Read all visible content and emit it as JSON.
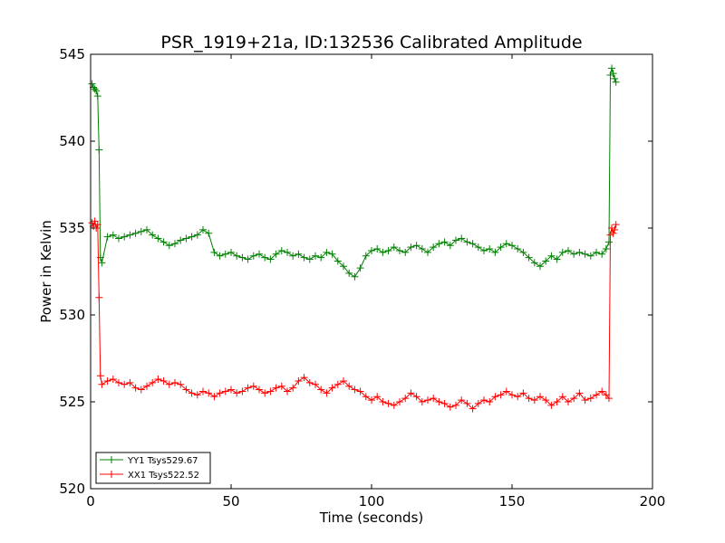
{
  "chart_data": {
    "type": "line",
    "title": "PSR_1919+21a, ID:132536 Calibrated Amplitude",
    "xlabel": "Time (seconds)",
    "ylabel": "Power in Kelvin",
    "xlim": [
      0,
      200
    ],
    "ylim": [
      520,
      545
    ],
    "xticks": [
      0,
      50,
      100,
      150,
      200
    ],
    "yticks": [
      520,
      525,
      530,
      535,
      540,
      545
    ],
    "grid": false,
    "legend_position": "lower-left",
    "series": [
      {
        "name": "YY1 Tsys529.67",
        "color": "#008000",
        "marker": "+",
        "points": [
          [
            0.5,
            543.3
          ],
          [
            1.0,
            543.1
          ],
          [
            1.5,
            543.0
          ],
          [
            2.0,
            542.9
          ],
          [
            2.5,
            542.6
          ],
          [
            3.0,
            539.5
          ],
          [
            3.5,
            533.3
          ],
          [
            4.0,
            533.0
          ],
          [
            6,
            534.5
          ],
          [
            8,
            534.6
          ],
          [
            10,
            534.4
          ],
          [
            12,
            534.5
          ],
          [
            14,
            534.6
          ],
          [
            16,
            534.7
          ],
          [
            18,
            534.8
          ],
          [
            20,
            534.9
          ],
          [
            22,
            534.6
          ],
          [
            24,
            534.4
          ],
          [
            26,
            534.2
          ],
          [
            28,
            534.0
          ],
          [
            30,
            534.1
          ],
          [
            32,
            534.3
          ],
          [
            34,
            534.4
          ],
          [
            36,
            534.5
          ],
          [
            38,
            534.6
          ],
          [
            40,
            534.9
          ],
          [
            42,
            534.7
          ],
          [
            44,
            533.6
          ],
          [
            46,
            533.4
          ],
          [
            48,
            533.5
          ],
          [
            50,
            533.6
          ],
          [
            52,
            533.4
          ],
          [
            54,
            533.3
          ],
          [
            56,
            533.2
          ],
          [
            58,
            533.4
          ],
          [
            60,
            533.5
          ],
          [
            62,
            533.3
          ],
          [
            64,
            533.2
          ],
          [
            66,
            533.5
          ],
          [
            68,
            533.7
          ],
          [
            70,
            533.6
          ],
          [
            72,
            533.4
          ],
          [
            74,
            533.5
          ],
          [
            76,
            533.3
          ],
          [
            78,
            533.2
          ],
          [
            80,
            533.4
          ],
          [
            82,
            533.3
          ],
          [
            84,
            533.6
          ],
          [
            86,
            533.5
          ],
          [
            88,
            533.1
          ],
          [
            90,
            532.8
          ],
          [
            92,
            532.4
          ],
          [
            94,
            532.2
          ],
          [
            96,
            532.7
          ],
          [
            98,
            533.4
          ],
          [
            100,
            533.7
          ],
          [
            102,
            533.8
          ],
          [
            104,
            533.6
          ],
          [
            106,
            533.7
          ],
          [
            108,
            533.9
          ],
          [
            110,
            533.7
          ],
          [
            112,
            533.6
          ],
          [
            114,
            533.9
          ],
          [
            116,
            534.0
          ],
          [
            118,
            533.8
          ],
          [
            120,
            533.6
          ],
          [
            122,
            533.9
          ],
          [
            124,
            534.1
          ],
          [
            126,
            534.2
          ],
          [
            128,
            534.0
          ],
          [
            130,
            534.3
          ],
          [
            132,
            534.4
          ],
          [
            134,
            534.2
          ],
          [
            136,
            534.1
          ],
          [
            138,
            533.9
          ],
          [
            140,
            533.7
          ],
          [
            142,
            533.8
          ],
          [
            144,
            533.6
          ],
          [
            146,
            533.9
          ],
          [
            148,
            534.1
          ],
          [
            150,
            534.0
          ],
          [
            152,
            533.8
          ],
          [
            154,
            533.6
          ],
          [
            156,
            533.3
          ],
          [
            158,
            533.0
          ],
          [
            160,
            532.8
          ],
          [
            162,
            533.1
          ],
          [
            164,
            533.4
          ],
          [
            166,
            533.2
          ],
          [
            168,
            533.6
          ],
          [
            170,
            533.7
          ],
          [
            172,
            533.5
          ],
          [
            174,
            533.6
          ],
          [
            176,
            533.5
          ],
          [
            178,
            533.4
          ],
          [
            180,
            533.6
          ],
          [
            182,
            533.5
          ],
          [
            183.5,
            533.8
          ],
          [
            184.5,
            534.2
          ],
          [
            185.0,
            543.8
          ],
          [
            185.5,
            544.2
          ],
          [
            186.0,
            543.9
          ],
          [
            186.5,
            543.6
          ],
          [
            187.0,
            543.4
          ]
        ]
      },
      {
        "name": "XX1 Tsys522.52",
        "color": "#ff0000",
        "marker": "+",
        "points": [
          [
            0.5,
            535.3
          ],
          [
            1.0,
            535.1
          ],
          [
            1.5,
            535.4
          ],
          [
            2.0,
            535.0
          ],
          [
            2.5,
            535.2
          ],
          [
            3.0,
            531.0
          ],
          [
            3.5,
            526.5
          ],
          [
            4.0,
            526.0
          ],
          [
            6,
            526.2
          ],
          [
            8,
            526.3
          ],
          [
            10,
            526.1
          ],
          [
            12,
            526.0
          ],
          [
            14,
            526.1
          ],
          [
            16,
            525.8
          ],
          [
            18,
            525.7
          ],
          [
            20,
            525.9
          ],
          [
            22,
            526.1
          ],
          [
            24,
            526.3
          ],
          [
            26,
            526.2
          ],
          [
            28,
            526.0
          ],
          [
            30,
            526.1
          ],
          [
            32,
            526.0
          ],
          [
            34,
            525.7
          ],
          [
            36,
            525.5
          ],
          [
            38,
            525.4
          ],
          [
            40,
            525.6
          ],
          [
            42,
            525.5
          ],
          [
            44,
            525.3
          ],
          [
            46,
            525.5
          ],
          [
            48,
            525.6
          ],
          [
            50,
            525.7
          ],
          [
            52,
            525.5
          ],
          [
            54,
            525.6
          ],
          [
            56,
            525.8
          ],
          [
            58,
            525.9
          ],
          [
            60,
            525.7
          ],
          [
            62,
            525.5
          ],
          [
            64,
            525.6
          ],
          [
            66,
            525.8
          ],
          [
            68,
            525.9
          ],
          [
            70,
            525.6
          ],
          [
            72,
            525.8
          ],
          [
            74,
            526.2
          ],
          [
            76,
            526.4
          ],
          [
            78,
            526.1
          ],
          [
            80,
            526.0
          ],
          [
            82,
            525.7
          ],
          [
            84,
            525.5
          ],
          [
            86,
            525.8
          ],
          [
            88,
            526.0
          ],
          [
            90,
            526.2
          ],
          [
            92,
            525.9
          ],
          [
            94,
            525.7
          ],
          [
            96,
            525.6
          ],
          [
            98,
            525.3
          ],
          [
            100,
            525.1
          ],
          [
            102,
            525.3
          ],
          [
            104,
            525.0
          ],
          [
            106,
            524.9
          ],
          [
            108,
            524.8
          ],
          [
            110,
            525.0
          ],
          [
            112,
            525.2
          ],
          [
            114,
            525.5
          ],
          [
            116,
            525.3
          ],
          [
            118,
            525.0
          ],
          [
            120,
            525.1
          ],
          [
            122,
            525.2
          ],
          [
            124,
            525.0
          ],
          [
            126,
            524.9
          ],
          [
            128,
            524.7
          ],
          [
            130,
            524.8
          ],
          [
            132,
            525.1
          ],
          [
            134,
            524.9
          ],
          [
            136,
            524.6
          ],
          [
            138,
            524.9
          ],
          [
            140,
            525.1
          ],
          [
            142,
            525.0
          ],
          [
            144,
            525.3
          ],
          [
            146,
            525.4
          ],
          [
            148,
            525.6
          ],
          [
            150,
            525.4
          ],
          [
            152,
            525.3
          ],
          [
            154,
            525.5
          ],
          [
            156,
            525.2
          ],
          [
            158,
            525.1
          ],
          [
            160,
            525.3
          ],
          [
            162,
            525.1
          ],
          [
            164,
            524.8
          ],
          [
            166,
            525.0
          ],
          [
            168,
            525.3
          ],
          [
            170,
            525.0
          ],
          [
            172,
            525.2
          ],
          [
            174,
            525.5
          ],
          [
            176,
            525.1
          ],
          [
            178,
            525.2
          ],
          [
            180,
            525.4
          ],
          [
            182,
            525.6
          ],
          [
            183.5,
            525.4
          ],
          [
            184.5,
            525.2
          ],
          [
            185.0,
            534.6
          ],
          [
            185.5,
            535.0
          ],
          [
            186.0,
            534.7
          ],
          [
            186.5,
            534.9
          ],
          [
            187.0,
            535.2
          ]
        ]
      }
    ]
  }
}
